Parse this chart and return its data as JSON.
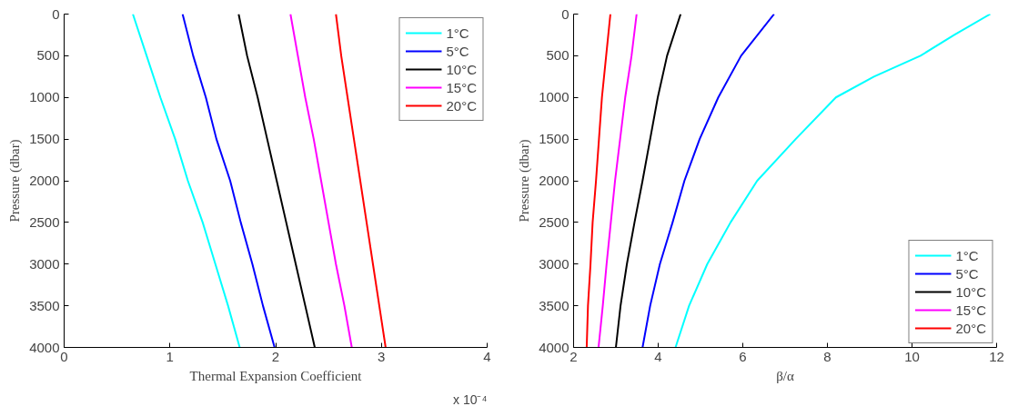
{
  "chart_data": [
    {
      "type": "line",
      "xlabel": "Thermal Expansion Coefficient",
      "ylabel": "Pressure (dbar)",
      "annotations": [
        "x 10⁻⁴"
      ],
      "xlim": [
        0,
        4
      ],
      "xticks": [
        0,
        1,
        2,
        3,
        4
      ],
      "ylim": [
        4000,
        0
      ],
      "yticks": [
        0,
        500,
        1000,
        1500,
        2000,
        2500,
        3000,
        3500,
        4000
      ],
      "grid": false,
      "legend": "top right",
      "marker": "none",
      "line_style": "solid",
      "series": [
        {
          "name": "1°C",
          "color": "#00ffff",
          "x": [
            0.65,
            0.78,
            0.91,
            1.05,
            1.17,
            1.31,
            1.43,
            1.55,
            1.66
          ],
          "values": [
            0,
            500,
            1000,
            1500,
            2000,
            2500,
            3000,
            3500,
            4000
          ]
        },
        {
          "name": "5°C",
          "color": "#0000ff",
          "x": [
            1.12,
            1.22,
            1.34,
            1.44,
            1.57,
            1.67,
            1.78,
            1.88,
            1.99
          ],
          "values": [
            0,
            500,
            1000,
            1500,
            2000,
            2500,
            3000,
            3500,
            4000
          ]
        },
        {
          "name": "10°C",
          "color": "#000000",
          "x": [
            1.65,
            1.73,
            1.83,
            1.92,
            2.01,
            2.1,
            2.19,
            2.28,
            2.37
          ],
          "values": [
            0,
            500,
            1000,
            1500,
            2000,
            2500,
            3000,
            3500,
            4000
          ]
        },
        {
          "name": "15°C",
          "color": "#ff00ff",
          "x": [
            2.14,
            2.21,
            2.28,
            2.36,
            2.43,
            2.5,
            2.57,
            2.65,
            2.72
          ],
          "values": [
            0,
            500,
            1000,
            1500,
            2000,
            2500,
            3000,
            3500,
            4000
          ]
        },
        {
          "name": "20°C",
          "color": "#ff0000",
          "x": [
            2.57,
            2.62,
            2.68,
            2.74,
            2.8,
            2.86,
            2.92,
            2.98,
            3.04
          ],
          "values": [
            0,
            500,
            1000,
            1500,
            2000,
            2500,
            3000,
            3500,
            4000
          ]
        }
      ]
    },
    {
      "type": "line",
      "xlabel": "β/α",
      "ylabel": "Pressure (dbar)",
      "xlim": [
        2,
        12
      ],
      "xticks": [
        2,
        4,
        6,
        8,
        10,
        12
      ],
      "ylim": [
        4000,
        0
      ],
      "yticks": [
        0,
        500,
        1000,
        1500,
        2000,
        2500,
        3000,
        3500,
        4000
      ],
      "grid": false,
      "legend": "bottom right",
      "marker": "none",
      "line_style": "solid",
      "series": [
        {
          "name": "1°C",
          "color": "#00ffff",
          "x": [
            11.85,
            11.0,
            10.2,
            9.1,
            8.2,
            7.25,
            6.34,
            5.71,
            5.16,
            4.73,
            4.41
          ],
          "values": [
            0,
            250,
            500,
            750,
            1000,
            1500,
            2000,
            2500,
            3000,
            3500,
            4000
          ]
        },
        {
          "name": "5°C",
          "color": "#0000ff",
          "x": [
            6.74,
            5.96,
            5.42,
            4.98,
            4.62,
            4.34,
            4.04,
            3.81,
            3.63
          ],
          "values": [
            0,
            500,
            1000,
            1500,
            2000,
            2500,
            3000,
            3500,
            4000
          ]
        },
        {
          "name": "10°C",
          "color": "#000000",
          "x": [
            4.53,
            4.21,
            3.99,
            3.81,
            3.63,
            3.44,
            3.26,
            3.11,
            3.0
          ],
          "values": [
            0,
            500,
            1000,
            1500,
            2000,
            2500,
            3000,
            3500,
            4000
          ]
        },
        {
          "name": "15°C",
          "color": "#ff00ff",
          "x": [
            3.49,
            3.37,
            3.22,
            3.1,
            2.98,
            2.88,
            2.78,
            2.69,
            2.59
          ],
          "values": [
            0,
            500,
            1000,
            1500,
            2000,
            2500,
            3000,
            3500,
            4000
          ]
        },
        {
          "name": "20°C",
          "color": "#ff0000",
          "x": [
            2.87,
            2.77,
            2.67,
            2.6,
            2.53,
            2.45,
            2.4,
            2.34,
            2.31
          ],
          "values": [
            0,
            500,
            1000,
            1500,
            2000,
            2500,
            3000,
            3500,
            4000
          ]
        }
      ]
    }
  ]
}
